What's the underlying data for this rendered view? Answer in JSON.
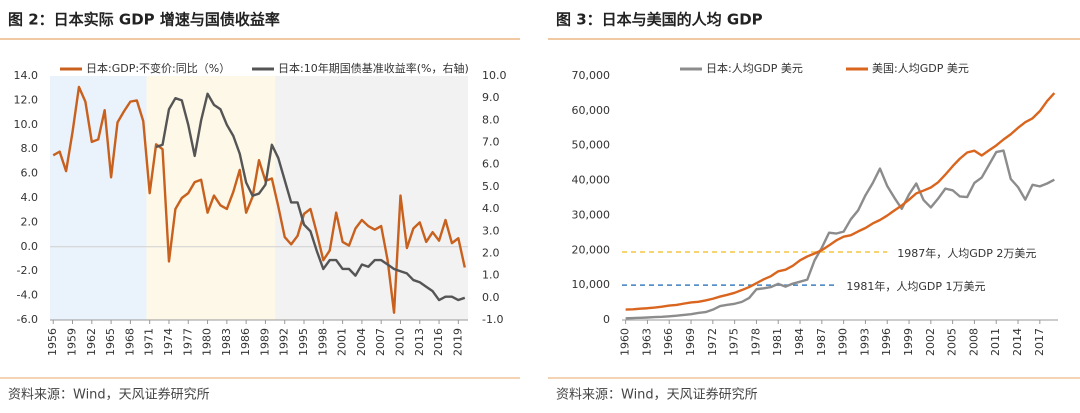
{
  "chart_data": [
    {
      "type": "line",
      "title": "图 2：日本实际 GDP 增速与国债收益率",
      "source": "资料来源：Wind，天风证券研究所",
      "x": [
        1956,
        1957,
        1958,
        1959,
        1960,
        1961,
        1962,
        1963,
        1964,
        1965,
        1966,
        1967,
        1968,
        1969,
        1970,
        1971,
        1972,
        1973,
        1974,
        1975,
        1976,
        1977,
        1978,
        1979,
        1980,
        1981,
        1982,
        1983,
        1984,
        1985,
        1986,
        1987,
        1988,
        1989,
        1990,
        1991,
        1992,
        1993,
        1994,
        1995,
        1996,
        1997,
        1998,
        1999,
        2000,
        2001,
        2002,
        2003,
        2004,
        2005,
        2006,
        2007,
        2008,
        2009,
        2010,
        2011,
        2012,
        2013,
        2014,
        2015,
        2016,
        2017,
        2018,
        2019,
        2020
      ],
      "xlim": [
        1955.5,
        2020.5
      ],
      "xticks": [
        1956,
        1959,
        1962,
        1965,
        1968,
        1971,
        1974,
        1977,
        1980,
        1983,
        1986,
        1989,
        1992,
        1995,
        1998,
        2001,
        2004,
        2007,
        2010,
        2013,
        2016,
        2019
      ],
      "ylim": [
        -6,
        14
      ],
      "yticks": [
        {
          "value": -6,
          "label": "-6.0"
        },
        {
          "value": -4,
          "label": "-4.0"
        },
        {
          "value": -2,
          "label": "-2.0"
        },
        {
          "value": 0,
          "label": "0.0"
        },
        {
          "value": 2,
          "label": "2.0"
        },
        {
          "value": 4,
          "label": "4.0"
        },
        {
          "value": 6,
          "label": "6.0"
        },
        {
          "value": 8,
          "label": "8.0"
        },
        {
          "value": 10,
          "label": "10.0"
        },
        {
          "value": 12,
          "label": "12.0"
        },
        {
          "value": 14,
          "label": "14.0"
        }
      ],
      "y2lim": [
        -1,
        10
      ],
      "y2ticks": [
        {
          "value": -1,
          "label": "-1.0"
        },
        {
          "value": 0,
          "label": "0.0"
        },
        {
          "value": 1,
          "label": "1.0"
        },
        {
          "value": 2,
          "label": "2.0"
        },
        {
          "value": 3,
          "label": "3.0"
        },
        {
          "value": 4,
          "label": "4.0"
        },
        {
          "value": 5,
          "label": "5.0"
        },
        {
          "value": 6,
          "label": "6.0"
        },
        {
          "value": 7,
          "label": "7.0"
        },
        {
          "value": 8,
          "label": "8.0"
        },
        {
          "value": 9,
          "label": "9.0"
        },
        {
          "value": 10,
          "label": "10.0"
        }
      ],
      "zero_line": true,
      "bands": [
        {
          "start": 1956,
          "end": 1970,
          "color": "#eaf2fb"
        },
        {
          "start": 1971,
          "end": 1990,
          "color": "#fdf8e8"
        },
        {
          "start": 1991,
          "end": 2020,
          "color": "#f2f2f2"
        }
      ],
      "series": [
        {
          "name": "日本:GDP:不变价:同比（%）",
          "color": "#c8601e",
          "values": [
            7.5,
            7.8,
            6.2,
            9.4,
            13.1,
            11.9,
            8.6,
            8.8,
            11.2,
            5.7,
            10.2,
            11.1,
            11.9,
            12.0,
            10.3,
            4.4,
            8.4,
            8.0,
            -1.2,
            3.1,
            4.0,
            4.4,
            5.3,
            5.5,
            2.8,
            4.2,
            3.4,
            3.1,
            4.5,
            6.3,
            2.8,
            4.1,
            7.1,
            5.4,
            5.6,
            3.3,
            0.8,
            0.2,
            0.9,
            2.7,
            3.1,
            1.1,
            -1.1,
            -0.3,
            2.8,
            0.4,
            0.1,
            1.5,
            2.2,
            1.7,
            1.4,
            1.7,
            -1.1,
            -5.4,
            4.2,
            -0.1,
            1.5,
            2.0,
            0.4,
            1.2,
            0.5,
            2.2,
            0.3,
            0.7,
            -1.7
          ]
        },
        {
          "name": "日本:10年期国债基准收益率(%，右轴)",
          "color": "#555555",
          "axis": "y2",
          "values": [
            null,
            null,
            null,
            null,
            null,
            null,
            null,
            null,
            null,
            null,
            null,
            null,
            null,
            null,
            null,
            null,
            6.8,
            6.9,
            8.5,
            9.0,
            8.9,
            7.8,
            6.4,
            8.0,
            9.2,
            8.7,
            8.5,
            7.8,
            7.3,
            6.5,
            5.2,
            4.6,
            4.7,
            5.1,
            6.9,
            6.3,
            5.3,
            4.3,
            4.3,
            3.3,
            3.0,
            2.1,
            1.3,
            1.7,
            1.7,
            1.3,
            1.3,
            1.0,
            1.5,
            1.4,
            1.7,
            1.7,
            1.5,
            1.3,
            1.2,
            1.1,
            0.8,
            0.7,
            0.5,
            0.3,
            -0.1,
            0.05,
            0.05,
            -0.1,
            0.0
          ]
        }
      ]
    },
    {
      "type": "line",
      "title": "图 3：日本与美国的人均 GDP",
      "source": "资料来源：Wind，天风证券研究所",
      "x": [
        1960,
        1961,
        1962,
        1963,
        1964,
        1965,
        1966,
        1967,
        1968,
        1969,
        1970,
        1971,
        1972,
        1973,
        1974,
        1975,
        1976,
        1977,
        1978,
        1979,
        1980,
        1981,
        1982,
        1983,
        1984,
        1985,
        1986,
        1987,
        1988,
        1989,
        1990,
        1991,
        1992,
        1993,
        1994,
        1995,
        1996,
        1997,
        1998,
        1999,
        2000,
        2001,
        2002,
        2003,
        2004,
        2005,
        2006,
        2007,
        2008,
        2009,
        2010,
        2011,
        2012,
        2013,
        2014,
        2015,
        2016,
        2017,
        2018,
        2019
      ],
      "xlim": [
        1959.5,
        2019.5
      ],
      "xticks": [
        1960,
        1963,
        1966,
        1969,
        1972,
        1975,
        1978,
        1981,
        1984,
        1987,
        1990,
        1993,
        1996,
        1999,
        2002,
        2005,
        2008,
        2011,
        2014,
        2017
      ],
      "ylim": [
        0,
        70000
      ],
      "yticks": [
        0,
        {
          "value": 10000,
          "label": "10,000"
        },
        {
          "value": 20000,
          "label": "20,000"
        },
        {
          "value": 30000,
          "label": "30,000"
        },
        {
          "value": 40000,
          "label": "40,000"
        },
        {
          "value": 50000,
          "label": "50,000"
        },
        {
          "value": 60000,
          "label": "60,000"
        },
        {
          "value": 70000,
          "label": "70,000"
        }
      ],
      "annotations": [
        {
          "text": "1987年，人均GDP 2万美元",
          "value": 19500,
          "x_end": 1996,
          "color": "#f5c542"
        },
        {
          "text": "1981年，人均GDP 1万美元",
          "value": 10000,
          "x_end": 1989,
          "color": "#3f7fc1"
        }
      ],
      "series": [
        {
          "name": "日本:人均GDP 美元",
          "color": "#8c8c8c",
          "values": [
            479,
            564,
            634,
            718,
            835,
            919,
            1059,
            1229,
            1451,
            1669,
            2038,
            2272,
            2967,
            3997,
            4354,
            4659,
            5197,
            6335,
            8821,
            9105,
            9463,
            10361,
            9578,
            10425,
            10984,
            11585,
            17112,
            20745,
            25059,
            24813,
            25359,
            28925,
            31465,
            35766,
            39269,
            43440,
            38437,
            35022,
            31903,
            36027,
            39169,
            34406,
            32289,
            34808,
            37688,
            37218,
            35434,
            35275,
            39339,
            40855,
            44508,
            48168,
            48603,
            40454,
            38109,
            34524,
            38794,
            38332,
            39159,
            40247
          ]
        },
        {
          "name": "美国:人均GDP 美元",
          "color": "#d9651e",
          "values": [
            3007,
            3067,
            3244,
            3375,
            3574,
            3828,
            4146,
            4336,
            4696,
            5032,
            5234,
            5609,
            6094,
            6726,
            7226,
            7801,
            8592,
            9453,
            10565,
            11674,
            12575,
            13976,
            14434,
            15544,
            17121,
            18237,
            19071,
            20039,
            21417,
            22857,
            23889,
            24342,
            25419,
            26387,
            27695,
            28691,
            29968,
            31459,
            32854,
            34515,
            36330,
            37134,
            38023,
            39497,
            41713,
            44115,
            46299,
            48050,
            48570,
            47195,
            48651,
            50066,
            51784,
            53291,
            55124,
            56763,
            57867,
            59915,
            62805,
            65095
          ]
        }
      ]
    }
  ]
}
